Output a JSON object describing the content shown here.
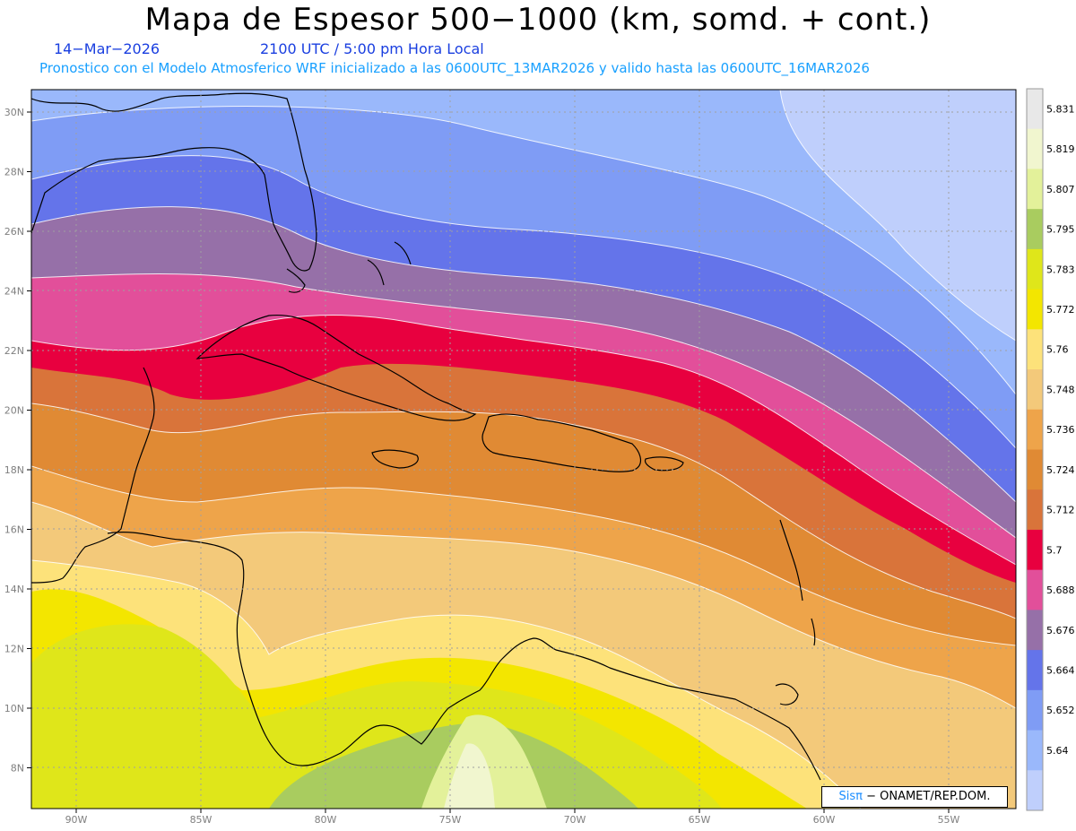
{
  "header": {
    "title": "Mapa de Espesor 500−1000 (km, somd. + cont.)",
    "date": "14−Mar−2026",
    "time": "2100 UTC / 5:00 pm Hora Local",
    "subtitle": "Pronostico con el Modelo Atmosferico WRF inicializado a las 0600UTC_13MAR2026 y valido hasta las  0600UTC_16MAR2026"
  },
  "axes": {
    "lat_labels": [
      "30N",
      "28N",
      "26N",
      "24N",
      "22N",
      "20N",
      "18N",
      "16N",
      "14N",
      "12N",
      "10N",
      "8N"
    ],
    "lon_labels": [
      "90W",
      "85W",
      "80W",
      "75W",
      "70W",
      "65W",
      "60W",
      "55W"
    ]
  },
  "colorbar": {
    "levels": [
      "5.831",
      "5.819",
      "5.807",
      "5.795",
      "5.783",
      "5.772",
      "5.76",
      "5.748",
      "5.736",
      "5.724",
      "5.712",
      "5.7",
      "5.688",
      "5.676",
      "5.664",
      "5.652",
      "5.64"
    ],
    "colors": [
      "#e8e8e8",
      "#f1f6cf",
      "#e3f19a",
      "#a9cc5f",
      "#dfe61a",
      "#f3e600",
      "#fde27a",
      "#f3c97a",
      "#eea44a",
      "#e08a34",
      "#d9743a",
      "#e8003f",
      "#e24f9a",
      "#9670a8",
      "#6474ea",
      "#7f9cf5",
      "#9ab8fb",
      "#bfcffc"
    ]
  },
  "credit": {
    "brand": "Sisπ",
    "org": " − ONAMET/REP.DOM."
  }
}
